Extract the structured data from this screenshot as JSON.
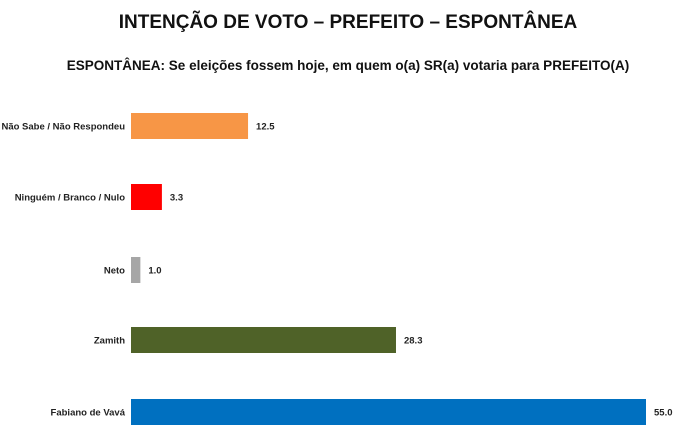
{
  "chart_data": {
    "type": "bar",
    "orientation": "horizontal",
    "title": "INTENÇÃO DE VOTO – PREFEITO – ESPONTÂNEA",
    "subtitle": "ESPONTÂNEA: Se eleições fossem hoje, em quem o(a) SR(a) votaria para PREFEITO(A)",
    "categories": [
      "Não Sabe / Não Respondeu",
      "Ninguém / Branco / Nulo",
      "Neto",
      "Zamith",
      "Fabiano de Vavá"
    ],
    "values": [
      12.5,
      3.3,
      1.0,
      28.3,
      55.0
    ],
    "value_labels": [
      "12.5",
      "3.3",
      "1.0",
      "28.3",
      "55.0"
    ],
    "colors": [
      "#F79646",
      "#FF0000",
      "#A6A6A6",
      "#4F6228",
      "#0070C0"
    ],
    "xlim": [
      0,
      55
    ],
    "grid": false
  }
}
